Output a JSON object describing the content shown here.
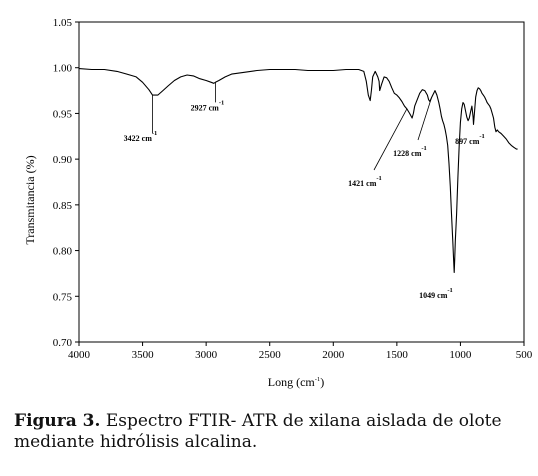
{
  "chart_data": {
    "type": "line",
    "title": "",
    "xlabel": "Long (cm",
    "xlabel_sup": "-1",
    "xlabel_close": ")",
    "ylabel": "Transmitancia (%)",
    "xlim": [
      4000,
      500
    ],
    "ylim": [
      0.7,
      1.05
    ],
    "x_reversed": true,
    "grid": false,
    "x_ticks": [
      "4000",
      "3500",
      "3000",
      "2500",
      "2000",
      "1500",
      "1000",
      "500"
    ],
    "y_ticks": [
      "1.05",
      "1.00",
      "0.95",
      "0.90",
      "0.85",
      "0.80",
      "0.75",
      "0.70"
    ],
    "series": [
      {
        "color": "#000000",
        "x": [
          4000,
          3900,
          3800,
          3700,
          3600,
          3550,
          3500,
          3450,
          3422,
          3380,
          3340,
          3300,
          3250,
          3200,
          3150,
          3100,
          3050,
          3000,
          2960,
          2940,
          2927,
          2900,
          2850,
          2800,
          2700,
          2600,
          2500,
          2400,
          2300,
          2200,
          2100,
          2000,
          1900,
          1850,
          1800,
          1760,
          1740,
          1725,
          1710,
          1700,
          1690,
          1670,
          1650,
          1640,
          1635,
          1620,
          1600,
          1580,
          1560,
          1540,
          1520,
          1500,
          1480,
          1460,
          1440,
          1421,
          1400,
          1380,
          1370,
          1360,
          1340,
          1320,
          1300,
          1280,
          1260,
          1250,
          1240,
          1228,
          1210,
          1200,
          1185,
          1170,
          1160,
          1150,
          1140,
          1130,
          1120,
          1110,
          1100,
          1090,
          1080,
          1070,
          1060,
          1055,
          1049,
          1045,
          1040,
          1030,
          1020,
          1010,
          1000,
          990,
          980,
          970,
          960,
          950,
          940,
          930,
          920,
          910,
          900,
          897,
          890,
          880,
          870,
          860,
          850,
          840,
          830,
          820,
          810,
          800,
          790,
          780,
          770,
          760,
          750,
          740,
          730,
          720,
          710,
          700,
          680,
          660,
          640,
          620,
          600,
          580,
          560,
          550
        ],
        "y": [
          0.999,
          0.998,
          0.998,
          0.996,
          0.992,
          0.99,
          0.984,
          0.976,
          0.97,
          0.97,
          0.975,
          0.98,
          0.986,
          0.99,
          0.992,
          0.991,
          0.988,
          0.986,
          0.984,
          0.983,
          0.984,
          0.986,
          0.99,
          0.993,
          0.995,
          0.997,
          0.998,
          0.998,
          0.998,
          0.997,
          0.997,
          0.997,
          0.998,
          0.998,
          0.998,
          0.996,
          0.985,
          0.97,
          0.964,
          0.975,
          0.99,
          0.996,
          0.99,
          0.985,
          0.975,
          0.982,
          0.99,
          0.989,
          0.985,
          0.978,
          0.972,
          0.97,
          0.967,
          0.963,
          0.958,
          0.955,
          0.95,
          0.945,
          0.95,
          0.958,
          0.965,
          0.972,
          0.976,
          0.975,
          0.97,
          0.965,
          0.963,
          0.967,
          0.972,
          0.975,
          0.97,
          0.962,
          0.955,
          0.947,
          0.942,
          0.938,
          0.932,
          0.925,
          0.915,
          0.895,
          0.87,
          0.84,
          0.81,
          0.795,
          0.776,
          0.79,
          0.81,
          0.84,
          0.88,
          0.915,
          0.94,
          0.955,
          0.962,
          0.96,
          0.953,
          0.946,
          0.942,
          0.945,
          0.952,
          0.958,
          0.946,
          0.938,
          0.95,
          0.968,
          0.975,
          0.978,
          0.977,
          0.975,
          0.972,
          0.97,
          0.968,
          0.965,
          0.962,
          0.96,
          0.958,
          0.955,
          0.95,
          0.945,
          0.935,
          0.93,
          0.932,
          0.93,
          0.928,
          0.925,
          0.922,
          0.918,
          0.915,
          0.913,
          0.911,
          0.911
        ]
      }
    ],
    "annotations": [
      {
        "text": "3422 cm",
        "sup": "-1",
        "x": 3422,
        "y": 0.97
      },
      {
        "text": "2927 cm",
        "sup": "-1",
        "x": 2927,
        "y": 0.984
      },
      {
        "text": "1421 cm",
        "sup": "-1",
        "x": 1421,
        "y": 0.955
      },
      {
        "text": "1228 cm",
        "sup": "-1",
        "x": 1228,
        "y": 0.967
      },
      {
        "text": "897 cm",
        "sup": "-1",
        "x": 897,
        "y": 0.946
      },
      {
        "text": "1049 cm",
        "sup": "-1",
        "x": 1049,
        "y": 0.776
      }
    ]
  },
  "caption": {
    "label": "Figura 3.",
    "text": "Espectro FTIR- ATR de xilana aislada de olote mediante hidrólisis alcalina."
  }
}
